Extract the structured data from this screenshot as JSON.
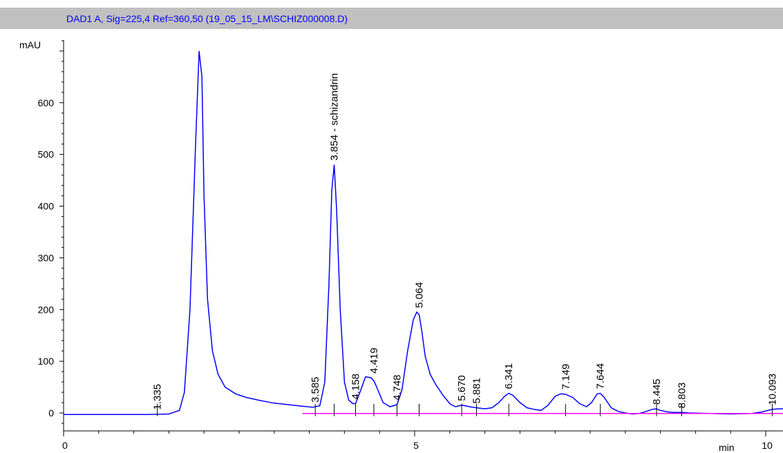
{
  "chart_data": {
    "type": "line",
    "title": "DAD1 A, Sig=225,4 Ref=360,50 (19_05_15_LM\\SCHIZ000008.D)",
    "ylabel": "mAU",
    "xlabel": "min",
    "xlim": [
      0,
      10.3
    ],
    "ylim": [
      -30,
      740
    ],
    "x_ticks": [
      0,
      5,
      10
    ],
    "y_ticks": [
      0,
      100,
      200,
      300,
      400,
      500,
      600
    ],
    "grid": false,
    "colors": {
      "trace": "#0000ff",
      "baseline": "#ff00ff",
      "title": "#0000ff",
      "title_bg": "#c0c0c0"
    },
    "series": [
      {
        "x": [
          0,
          1.2,
          1.5,
          1.65,
          1.72,
          1.8,
          1.88,
          1.93,
          1.97,
          2.0,
          2.05,
          2.12,
          2.2,
          2.3,
          2.45,
          2.6,
          2.8,
          3.0,
          3.2,
          3.4,
          3.55,
          3.65,
          3.72,
          3.78,
          3.82,
          3.854,
          3.89,
          3.94,
          4.0,
          4.06,
          4.12,
          4.158,
          4.22,
          4.3,
          4.38,
          4.419,
          4.46,
          4.55,
          4.65,
          4.748,
          4.82,
          4.9,
          4.98,
          5.03,
          5.064,
          5.1,
          5.15,
          5.22,
          5.3,
          5.4,
          5.5,
          5.58,
          5.64,
          5.67,
          5.72,
          5.78,
          5.881,
          6.0,
          6.1,
          6.2,
          6.28,
          6.341,
          6.4,
          6.5,
          6.6,
          6.7,
          6.8,
          6.9,
          7.0,
          7.08,
          7.149,
          7.25,
          7.35,
          7.45,
          7.52,
          7.6,
          7.644,
          7.7,
          7.8,
          7.9,
          8.0,
          8.1,
          8.2,
          8.3,
          8.38,
          8.445,
          8.5,
          8.6,
          8.7,
          8.803,
          8.9,
          9.2,
          9.5,
          9.8,
          9.95,
          10.093,
          10.2,
          10.3
        ],
        "y": [
          -3,
          -3,
          -2,
          5,
          40,
          200,
          520,
          700,
          650,
          420,
          220,
          120,
          75,
          50,
          37,
          30,
          24,
          19,
          16,
          13,
          11,
          14,
          60,
          250,
          430,
          480,
          390,
          200,
          60,
          25,
          18,
          18,
          40,
          70,
          68,
          62,
          50,
          20,
          12,
          16,
          45,
          120,
          180,
          195,
          190,
          160,
          110,
          75,
          55,
          35,
          18,
          12,
          14,
          15,
          14,
          12,
          10,
          8,
          10,
          20,
          32,
          38,
          34,
          20,
          10,
          7,
          5,
          15,
          32,
          37,
          36,
          30,
          18,
          12,
          20,
          37,
          38,
          30,
          10,
          3,
          0,
          -2,
          -1,
          3,
          7,
          8,
          5,
          2,
          1,
          1,
          0,
          -1,
          -2,
          -1,
          2,
          7,
          8,
          8
        ]
      },
      {
        "x": [
          3.4,
          10.3
        ],
        "y": [
          -1,
          -1
        ]
      }
    ],
    "annotations": [
      {
        "text": "1.335",
        "x": 1.335,
        "y": -2
      },
      {
        "text": "3.585",
        "x": 3.585,
        "y": 12
      },
      {
        "text": "3.854 - schizandrin",
        "x": 3.854,
        "y": 480
      },
      {
        "text": "4.158",
        "x": 4.158,
        "y": 18
      },
      {
        "text": "4.419",
        "x": 4.419,
        "y": 68
      },
      {
        "text": "4.748",
        "x": 4.748,
        "y": 16
      },
      {
        "text": "5.064",
        "x": 5.064,
        "y": 195
      },
      {
        "text": "5.670",
        "x": 5.67,
        "y": 15
      },
      {
        "text": "5.881",
        "x": 5.881,
        "y": 10
      },
      {
        "text": "6.341",
        "x": 6.341,
        "y": 38
      },
      {
        "text": "7.149",
        "x": 7.149,
        "y": 37
      },
      {
        "text": "7.644",
        "x": 7.644,
        "y": 38
      },
      {
        "text": "8.445",
        "x": 8.445,
        "y": 8
      },
      {
        "text": "8.803",
        "x": 8.803,
        "y": 1
      },
      {
        "text": "10.093",
        "x": 10.093,
        "y": 7
      }
    ]
  }
}
